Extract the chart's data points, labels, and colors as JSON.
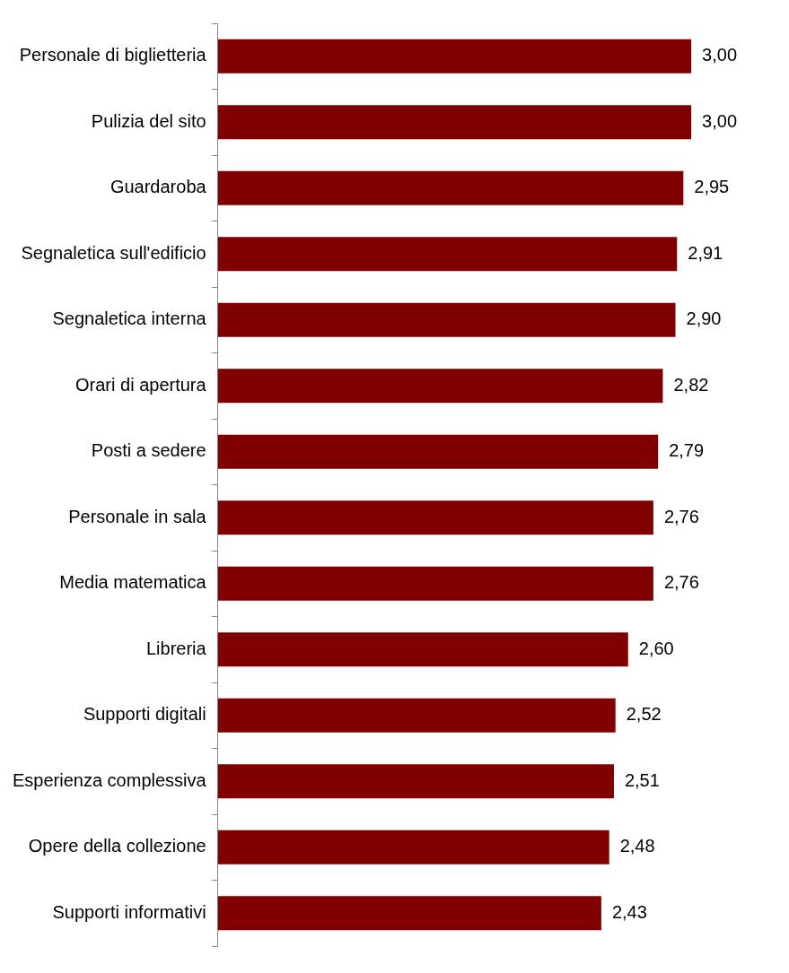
{
  "chart_data": {
    "type": "bar",
    "orientation": "horizontal",
    "categories": [
      "Personale di biglietteria",
      "Pulizia del sito",
      "Guardaroba",
      "Segnaletica sull'edificio",
      "Segnaletica interna",
      "Orari di apertura",
      "Posti a sedere",
      "Personale in sala",
      "Media matematica",
      "Libreria",
      "Supporti digitali",
      "Esperienza complessiva",
      "Opere della collezione",
      "Supporti informativi"
    ],
    "values": [
      3.0,
      3.0,
      2.95,
      2.91,
      2.9,
      2.82,
      2.79,
      2.76,
      2.76,
      2.6,
      2.52,
      2.51,
      2.48,
      2.43
    ],
    "value_labels": [
      "3,00",
      "3,00",
      "2,95",
      "2,91",
      "2,90",
      "2,82",
      "2,79",
      "2,76",
      "2,76",
      "2,60",
      "2,52",
      "2,51",
      "2,48",
      "2,43"
    ],
    "color": "#800000",
    "grid": false,
    "legend": false
  }
}
